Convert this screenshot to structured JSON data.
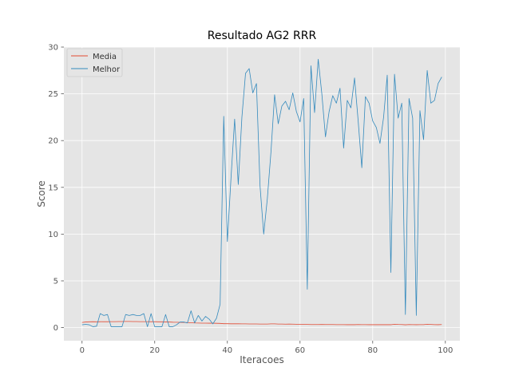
{
  "chart_data": {
    "type": "line",
    "title": "Resultado AG2 RRR",
    "xlabel": "Iteracoes",
    "ylabel": "Score",
    "xlim": [
      -5,
      104
    ],
    "ylim": [
      -1.4,
      30
    ],
    "xticks": [
      0,
      20,
      40,
      60,
      80,
      100
    ],
    "yticks": [
      0,
      5,
      10,
      15,
      20,
      25,
      30
    ],
    "grid": true,
    "legend_position": "top-left",
    "background": "#e5e5e5",
    "series": [
      {
        "name": "Media",
        "color": "#e24a33",
        "x": [
          0,
          1,
          2,
          3,
          4,
          5,
          6,
          7,
          8,
          9,
          10,
          11,
          12,
          13,
          14,
          15,
          16,
          17,
          18,
          19,
          20,
          21,
          22,
          23,
          24,
          25,
          26,
          27,
          28,
          29,
          30,
          31,
          32,
          33,
          34,
          35,
          36,
          37,
          38,
          39,
          40,
          41,
          42,
          43,
          44,
          45,
          46,
          47,
          48,
          49,
          50,
          51,
          52,
          53,
          54,
          55,
          56,
          57,
          58,
          59,
          60,
          61,
          62,
          63,
          64,
          65,
          66,
          67,
          68,
          69,
          70,
          71,
          72,
          73,
          74,
          75,
          76,
          77,
          78,
          79,
          80,
          81,
          82,
          83,
          84,
          85,
          86,
          87,
          88,
          89,
          90,
          91,
          92,
          93,
          94,
          95,
          96,
          97,
          98,
          99
        ],
        "values": [
          0.55,
          0.6,
          0.62,
          0.63,
          0.62,
          0.63,
          0.64,
          0.63,
          0.64,
          0.64,
          0.65,
          0.65,
          0.66,
          0.66,
          0.65,
          0.65,
          0.64,
          0.64,
          0.64,
          0.63,
          0.63,
          0.62,
          0.62,
          0.6,
          0.6,
          0.58,
          0.57,
          0.56,
          0.55,
          0.54,
          0.52,
          0.5,
          0.49,
          0.48,
          0.48,
          0.47,
          0.47,
          0.46,
          0.45,
          0.42,
          0.42,
          0.41,
          0.41,
          0.41,
          0.4,
          0.4,
          0.39,
          0.39,
          0.39,
          0.38,
          0.38,
          0.38,
          0.4,
          0.4,
          0.38,
          0.38,
          0.37,
          0.38,
          0.37,
          0.36,
          0.35,
          0.34,
          0.34,
          0.33,
          0.33,
          0.33,
          0.34,
          0.33,
          0.33,
          0.33,
          0.32,
          0.32,
          0.32,
          0.31,
          0.32,
          0.31,
          0.33,
          0.32,
          0.32,
          0.31,
          0.31,
          0.32,
          0.31,
          0.31,
          0.31,
          0.31,
          0.36,
          0.34,
          0.33,
          0.3,
          0.33,
          0.32,
          0.31,
          0.32,
          0.32,
          0.36,
          0.34,
          0.32,
          0.31,
          0.33
        ]
      },
      {
        "name": "Melhor",
        "color": "#348abd",
        "x": [
          0,
          1,
          2,
          3,
          4,
          5,
          6,
          7,
          8,
          9,
          10,
          11,
          12,
          13,
          14,
          15,
          16,
          17,
          18,
          19,
          20,
          21,
          22,
          23,
          24,
          25,
          26,
          27,
          28,
          29,
          30,
          31,
          32,
          33,
          34,
          35,
          36,
          37,
          38,
          39,
          40,
          41,
          42,
          43,
          44,
          45,
          46,
          47,
          48,
          49,
          50,
          51,
          52,
          53,
          54,
          55,
          56,
          57,
          58,
          59,
          60,
          61,
          62,
          63,
          64,
          65,
          66,
          67,
          68,
          69,
          70,
          71,
          72,
          73,
          74,
          75,
          76,
          77,
          78,
          79,
          80,
          81,
          82,
          83,
          84,
          85,
          86,
          87,
          88,
          89,
          90,
          91,
          92,
          93,
          94,
          95,
          96,
          97,
          98,
          99
        ],
        "values": [
          0.3,
          0.35,
          0.3,
          0.1,
          0.15,
          1.5,
          1.3,
          1.4,
          0.1,
          0.1,
          0.1,
          0.1,
          1.4,
          1.3,
          1.4,
          1.3,
          1.3,
          1.5,
          0.1,
          1.5,
          0.1,
          0.1,
          0.1,
          1.4,
          0.1,
          0.1,
          0.3,
          0.6,
          0.6,
          0.5,
          1.8,
          0.5,
          1.3,
          0.7,
          1.2,
          0.9,
          0.4,
          1.0,
          2.5,
          22.6,
          9.2,
          16.0,
          22.3,
          15.3,
          22.5,
          27.2,
          27.7,
          25.1,
          26.1,
          15.1,
          10.0,
          13.8,
          18.8,
          24.9,
          21.8,
          23.7,
          24.2,
          23.3,
          25.1,
          23.1,
          22.0,
          24.5,
          4.1,
          28.0,
          23.0,
          28.7,
          25.0,
          20.4,
          23.1,
          24.8,
          24.0,
          25.6,
          19.2,
          24.3,
          23.5,
          26.7,
          22.1,
          17.1,
          24.7,
          24.0,
          22.1,
          21.4,
          19.7,
          22.5,
          27.0,
          5.9,
          27.1,
          22.4,
          24.0,
          1.4,
          24.5,
          22.4,
          1.3,
          23.2,
          20.1,
          27.5,
          24.0,
          24.3,
          26.1,
          26.8
        ]
      }
    ]
  }
}
